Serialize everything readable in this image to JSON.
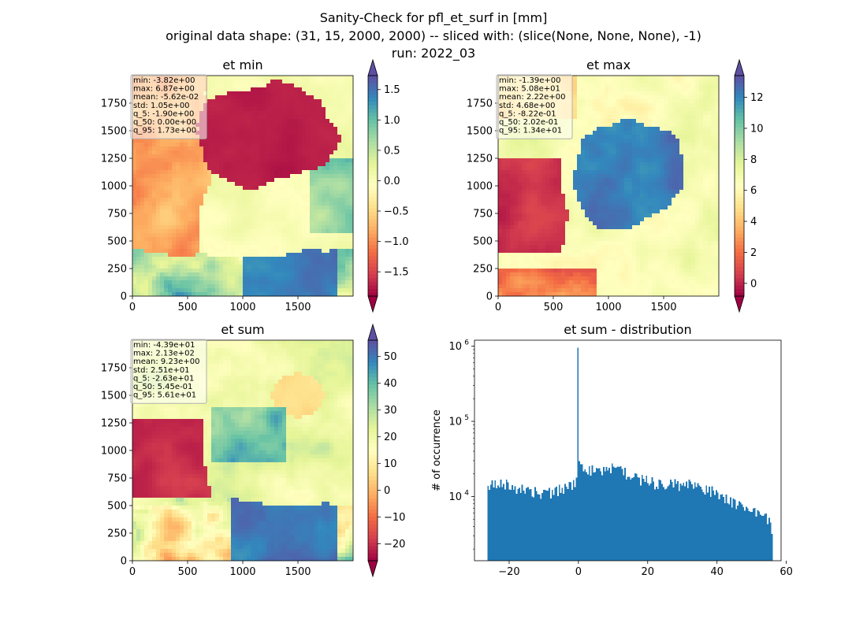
{
  "figure": {
    "suptitle_lines": [
      "Sanity-Check for pfl_et_surf in [mm]",
      "original data shape: (31, 15, 2000, 2000) -- sliced with: (slice(None, None, None), -1)",
      "run: 2022_03"
    ]
  },
  "colors": {
    "hist_bar": "#1f77b4",
    "stats_box_fill": "#ffffff",
    "stats_box_edge": "#b0b0b0",
    "cmap_spectral": [
      "#9e0142",
      "#d53e4f",
      "#f46d43",
      "#fdae61",
      "#fee08b",
      "#ffffbf",
      "#e6f598",
      "#abdda4",
      "#66c2a5",
      "#3288bd",
      "#5e4fa2"
    ]
  },
  "chart_data": [
    {
      "type": "heatmap",
      "title": "et min",
      "colormap": "Spectral",
      "xlim": [
        0,
        2000
      ],
      "ylim": [
        0,
        2000
      ],
      "xticks": [
        0,
        500,
        1000,
        1500
      ],
      "yticks": [
        0,
        250,
        500,
        750,
        1000,
        1250,
        1500,
        1750
      ],
      "colorbar": {
        "ticks": [
          -1.5,
          -1.0,
          -0.5,
          0.0,
          0.5,
          1.0,
          1.5
        ],
        "tick_labels": [
          "−1.5",
          "−1.0",
          "−0.5",
          "0.0",
          "0.5",
          "1.0",
          "1.5"
        ],
        "range": [
          -1.9,
          1.73
        ],
        "extend": "both"
      },
      "stats": [
        "min: -3.82e+00",
        "max: 6.87e+00",
        "mean: -5.62e-02",
        "std: 1.05e+00",
        "q_5: -1.90e+00",
        "q_50: 0.00e+00",
        "q_95: 1.73e+00"
      ]
    },
    {
      "type": "heatmap",
      "title": "et max",
      "colormap": "Spectral",
      "xlim": [
        0,
        2000
      ],
      "ylim": [
        0,
        2000
      ],
      "xticks": [
        0,
        500,
        1000,
        1500
      ],
      "yticks": [
        0,
        250,
        500,
        750,
        1000,
        1250,
        1500,
        1750
      ],
      "colorbar": {
        "ticks": [
          0,
          2,
          4,
          6,
          8,
          10,
          12
        ],
        "tick_labels": [
          "0",
          "2",
          "4",
          "6",
          "8",
          "10",
          "12"
        ],
        "range": [
          -0.822,
          13.4
        ],
        "extend": "both"
      },
      "stats": [
        "min: -1.39e+00",
        "max: 5.08e+01",
        "mean: 2.22e+00",
        "std: 4.68e+00",
        "q_5: -8.22e-01",
        "q_50: 2.02e-01",
        "q_95: 1.34e+01"
      ]
    },
    {
      "type": "heatmap",
      "title": "et sum",
      "colormap": "Spectral",
      "xlim": [
        0,
        2000
      ],
      "ylim": [
        0,
        2000
      ],
      "xticks": [
        0,
        500,
        1000,
        1500
      ],
      "yticks": [
        0,
        250,
        500,
        750,
        1000,
        1250,
        1500,
        1750
      ],
      "colorbar": {
        "ticks": [
          -20,
          -10,
          0,
          10,
          20,
          30,
          40,
          50
        ],
        "tick_labels": [
          "−20",
          "−10",
          "0",
          "10",
          "20",
          "30",
          "40",
          "50"
        ],
        "range": [
          -26.3,
          56.1
        ],
        "extend": "both"
      },
      "stats": [
        "min: -4.39e+01",
        "max: 2.13e+02",
        "mean: 9.23e+00",
        "std: 2.51e+01",
        "q_5: -2.63e+01",
        "q_50: 5.45e-01",
        "q_95: 5.61e+01"
      ]
    },
    {
      "type": "bar",
      "title": "et sum - distribution",
      "ylabel": "# of occurrence",
      "xlabel": "",
      "yscale": "log",
      "xlim": [
        -30,
        58.5
      ],
      "ylim": [
        1400,
        1200000
      ],
      "xticks": [
        -20,
        0,
        20,
        40,
        60
      ],
      "xtick_labels": [
        "−20",
        "0",
        "20",
        "40",
        "60"
      ],
      "yticks": [
        10000,
        100000,
        1000000
      ],
      "ytick_labels": [
        "10^4",
        "10^5",
        "10^6"
      ],
      "bin_range": [
        -26.3,
        56.1
      ],
      "bins": 200,
      "profile_x": [
        -26.3,
        -25,
        -22,
        -20,
        -17,
        -15,
        -12,
        -10,
        -7,
        -5,
        -3,
        -1,
        -0.5,
        0,
        0.5,
        2,
        4,
        6,
        8,
        10,
        12,
        14,
        16,
        18,
        20,
        22,
        24,
        26,
        28,
        30,
        32,
        34,
        36,
        38,
        40,
        42,
        44,
        46,
        48,
        50,
        52,
        54,
        55.5,
        56.1
      ],
      "profile_y": [
        12000,
        13800,
        15500,
        14000,
        13000,
        12500,
        11500,
        11000,
        11500,
        12500,
        13500,
        15000,
        20000,
        24000,
        26000,
        24500,
        22000,
        21000,
        22500,
        24000,
        22500,
        20000,
        18000,
        17000,
        16000,
        15000,
        14000,
        14500,
        14800,
        14000,
        14500,
        13800,
        12500,
        12000,
        11000,
        9500,
        8500,
        7800,
        7000,
        6500,
        5800,
        5200,
        4500,
        3500
      ],
      "spike": {
        "x": -0.05,
        "y": 950000
      }
    }
  ]
}
